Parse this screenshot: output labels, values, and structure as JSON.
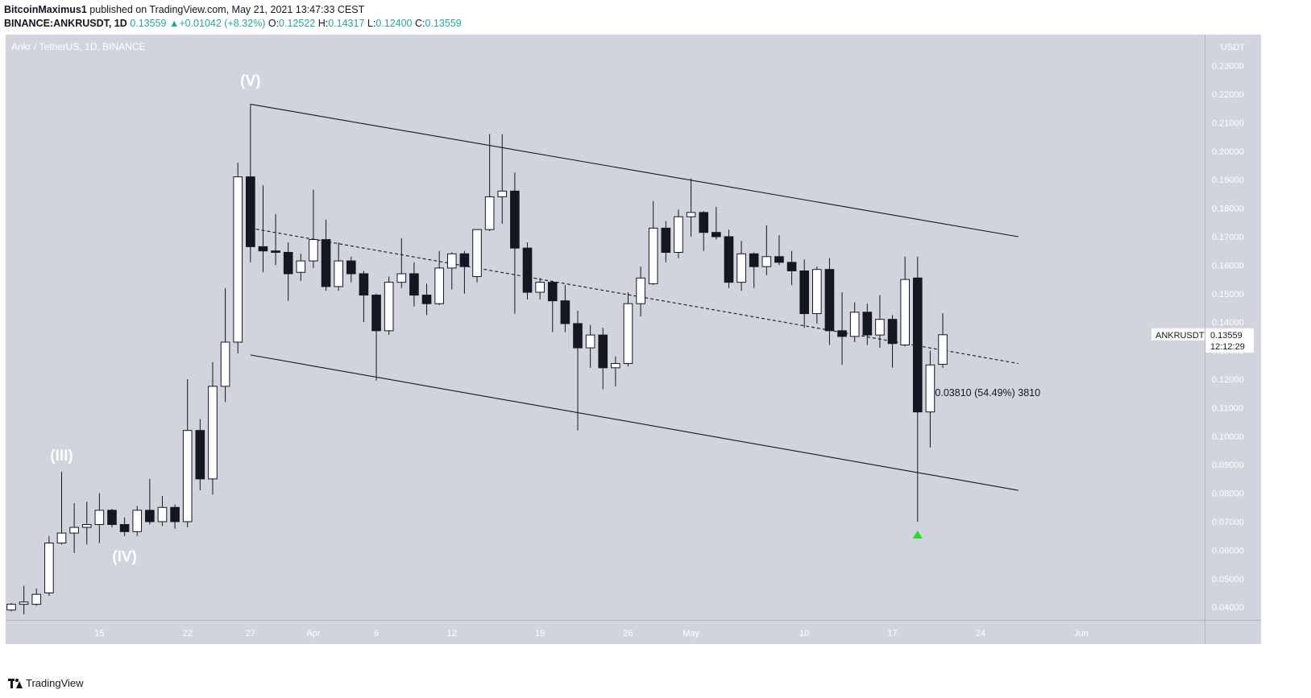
{
  "header": {
    "author": "BitcoinMaximus1",
    "published": " published on TradingView.com, May 21, 2021 13:47:33 CEST",
    "symbol": "BINANCE:ANKRUSDT, 1D",
    "last": "0.13559",
    "change_arrow": "▲",
    "change": "+0.01042 (+8.32%)",
    "o_label": "O:",
    "o": "0.12522",
    "h_label": "H:",
    "h": "0.14317",
    "l_label": "L:",
    "l": "0.12400",
    "c_label": "C:",
    "c": "0.13559"
  },
  "footer": {
    "brand": "TradingView",
    "logo_icon": "tradingview-logo-icon"
  },
  "chart_data": {
    "type": "candlestick",
    "title": "Ankr / TetherUS, 1D, BINANCE",
    "currency": "USDT",
    "ylim": [
      0.0375,
      0.233
    ],
    "y_ticks": [
      0.04,
      0.05,
      0.06,
      0.07,
      0.08,
      0.09,
      0.1,
      0.11,
      0.12,
      0.13,
      0.14,
      0.15,
      0.16,
      0.17,
      0.18,
      0.19,
      0.2,
      0.21,
      0.22,
      0.23
    ],
    "y_tick_labels": [
      "0.04000",
      "0.05000",
      "0.06000",
      "0.07000",
      "0.08000",
      "0.09000",
      "0.10000",
      "0.11000",
      "0.12000",
      "0.13000",
      "0.14000",
      "0.15000",
      "0.16000",
      "0.17000",
      "0.18000",
      "0.19000",
      "0.20000",
      "0.21000",
      "0.22000",
      "0.23000"
    ],
    "x_start": "2021-03-08",
    "x_end": "2021-06-06",
    "x_ticks": [
      {
        "date": "2021-03-15",
        "label": "15"
      },
      {
        "date": "2021-03-22",
        "label": "22"
      },
      {
        "date": "2021-03-27",
        "label": "27"
      },
      {
        "date": "2021-04-01",
        "label": "Apr"
      },
      {
        "date": "2021-04-06",
        "label": "6"
      },
      {
        "date": "2021-04-12",
        "label": "12"
      },
      {
        "date": "2021-04-19",
        "label": "19"
      },
      {
        "date": "2021-04-26",
        "label": "26"
      },
      {
        "date": "2021-05-01",
        "label": "May"
      },
      {
        "date": "2021-05-10",
        "label": "10"
      },
      {
        "date": "2021-05-17",
        "label": "17"
      },
      {
        "date": "2021-05-24",
        "label": "24"
      },
      {
        "date": "2021-06-01",
        "label": "Jun"
      }
    ],
    "candles": [
      {
        "date": "2021-03-08",
        "o": 0.039,
        "h": 0.0415,
        "l": 0.0385,
        "c": 0.041
      },
      {
        "date": "2021-03-09",
        "o": 0.041,
        "h": 0.0475,
        "l": 0.0375,
        "c": 0.0418
      },
      {
        "date": "2021-03-10",
        "o": 0.041,
        "h": 0.0465,
        "l": 0.0405,
        "c": 0.0445
      },
      {
        "date": "2021-03-11",
        "o": 0.045,
        "h": 0.065,
        "l": 0.044,
        "c": 0.0625
      },
      {
        "date": "2021-03-12",
        "o": 0.0625,
        "h": 0.0875,
        "l": 0.062,
        "c": 0.066
      },
      {
        "date": "2021-03-13",
        "o": 0.066,
        "h": 0.0765,
        "l": 0.059,
        "c": 0.068
      },
      {
        "date": "2021-03-14",
        "o": 0.068,
        "h": 0.077,
        "l": 0.062,
        "c": 0.069
      },
      {
        "date": "2021-03-15",
        "o": 0.069,
        "h": 0.08,
        "l": 0.0625,
        "c": 0.074
      },
      {
        "date": "2021-03-16",
        "o": 0.074,
        "h": 0.0745,
        "l": 0.068,
        "c": 0.069
      },
      {
        "date": "2021-03-17",
        "o": 0.069,
        "h": 0.0715,
        "l": 0.065,
        "c": 0.0665
      },
      {
        "date": "2021-03-18",
        "o": 0.0665,
        "h": 0.0755,
        "l": 0.065,
        "c": 0.074
      },
      {
        "date": "2021-03-19",
        "o": 0.074,
        "h": 0.085,
        "l": 0.069,
        "c": 0.07
      },
      {
        "date": "2021-03-20",
        "o": 0.07,
        "h": 0.079,
        "l": 0.0685,
        "c": 0.075
      },
      {
        "date": "2021-03-21",
        "o": 0.075,
        "h": 0.076,
        "l": 0.0675,
        "c": 0.07
      },
      {
        "date": "2021-03-22",
        "o": 0.07,
        "h": 0.12,
        "l": 0.068,
        "c": 0.102
      },
      {
        "date": "2021-03-23",
        "o": 0.102,
        "h": 0.106,
        "l": 0.081,
        "c": 0.085
      },
      {
        "date": "2021-03-24",
        "o": 0.085,
        "h": 0.126,
        "l": 0.0795,
        "c": 0.1175
      },
      {
        "date": "2021-03-25",
        "o": 0.1175,
        "h": 0.152,
        "l": 0.112,
        "c": 0.133
      },
      {
        "date": "2021-03-26",
        "o": 0.133,
        "h": 0.196,
        "l": 0.129,
        "c": 0.191
      },
      {
        "date": "2021-03-27",
        "o": 0.191,
        "h": 0.2165,
        "l": 0.161,
        "c": 0.1665
      },
      {
        "date": "2021-03-28",
        "o": 0.1665,
        "h": 0.188,
        "l": 0.1575,
        "c": 0.165
      },
      {
        "date": "2021-03-29",
        "o": 0.165,
        "h": 0.178,
        "l": 0.16,
        "c": 0.1645
      },
      {
        "date": "2021-03-30",
        "o": 0.1645,
        "h": 0.168,
        "l": 0.1475,
        "c": 0.157
      },
      {
        "date": "2021-03-31",
        "o": 0.1575,
        "h": 0.164,
        "l": 0.1545,
        "c": 0.1615
      },
      {
        "date": "2021-04-01",
        "o": 0.1615,
        "h": 0.1865,
        "l": 0.159,
        "c": 0.169
      },
      {
        "date": "2021-04-02",
        "o": 0.169,
        "h": 0.176,
        "l": 0.151,
        "c": 0.1525
      },
      {
        "date": "2021-04-03",
        "o": 0.1525,
        "h": 0.168,
        "l": 0.151,
        "c": 0.1615
      },
      {
        "date": "2021-04-04",
        "o": 0.1615,
        "h": 0.163,
        "l": 0.154,
        "c": 0.157
      },
      {
        "date": "2021-04-05",
        "o": 0.157,
        "h": 0.158,
        "l": 0.14,
        "c": 0.1495
      },
      {
        "date": "2021-04-06",
        "o": 0.1495,
        "h": 0.15,
        "l": 0.1195,
        "c": 0.137
      },
      {
        "date": "2021-04-07",
        "o": 0.137,
        "h": 0.156,
        "l": 0.1355,
        "c": 0.154
      },
      {
        "date": "2021-04-08",
        "o": 0.154,
        "h": 0.1695,
        "l": 0.152,
        "c": 0.157
      },
      {
        "date": "2021-04-09",
        "o": 0.157,
        "h": 0.161,
        "l": 0.1455,
        "c": 0.1495
      },
      {
        "date": "2021-04-10",
        "o": 0.1495,
        "h": 0.1535,
        "l": 0.1425,
        "c": 0.1465
      },
      {
        "date": "2021-04-11",
        "o": 0.1465,
        "h": 0.165,
        "l": 0.146,
        "c": 0.159
      },
      {
        "date": "2021-04-12",
        "o": 0.159,
        "h": 0.1645,
        "l": 0.1515,
        "c": 0.164
      },
      {
        "date": "2021-04-13",
        "o": 0.164,
        "h": 0.165,
        "l": 0.15,
        "c": 0.1595
      },
      {
        "date": "2021-04-14",
        "o": 0.156,
        "h": 0.1725,
        "l": 0.154,
        "c": 0.1725
      },
      {
        "date": "2021-04-15",
        "o": 0.1725,
        "h": 0.206,
        "l": 0.172,
        "c": 0.184
      },
      {
        "date": "2021-04-16",
        "o": 0.184,
        "h": 0.206,
        "l": 0.1745,
        "c": 0.186
      },
      {
        "date": "2021-04-17",
        "o": 0.186,
        "h": 0.1925,
        "l": 0.143,
        "c": 0.166
      },
      {
        "date": "2021-04-18",
        "o": 0.166,
        "h": 0.168,
        "l": 0.148,
        "c": 0.1505
      },
      {
        "date": "2021-04-19",
        "o": 0.1505,
        "h": 0.1555,
        "l": 0.148,
        "c": 0.154
      },
      {
        "date": "2021-04-20",
        "o": 0.154,
        "h": 0.1545,
        "l": 0.1365,
        "c": 0.1475
      },
      {
        "date": "2021-04-21",
        "o": 0.1475,
        "h": 0.153,
        "l": 0.1365,
        "c": 0.1395
      },
      {
        "date": "2021-04-22",
        "o": 0.1395,
        "h": 0.144,
        "l": 0.102,
        "c": 0.131
      },
      {
        "date": "2021-04-23",
        "o": 0.131,
        "h": 0.139,
        "l": 0.124,
        "c": 0.1355
      },
      {
        "date": "2021-04-24",
        "o": 0.1355,
        "h": 0.138,
        "l": 0.1165,
        "c": 0.124
      },
      {
        "date": "2021-04-25",
        "o": 0.124,
        "h": 0.128,
        "l": 0.1175,
        "c": 0.1255
      },
      {
        "date": "2021-04-26",
        "o": 0.1255,
        "h": 0.1505,
        "l": 0.1245,
        "c": 0.1465
      },
      {
        "date": "2021-04-27",
        "o": 0.1465,
        "h": 0.1595,
        "l": 0.142,
        "c": 0.1555
      },
      {
        "date": "2021-04-28",
        "o": 0.1535,
        "h": 0.1825,
        "l": 0.153,
        "c": 0.173
      },
      {
        "date": "2021-04-29",
        "o": 0.173,
        "h": 0.1755,
        "l": 0.161,
        "c": 0.1645
      },
      {
        "date": "2021-04-30",
        "o": 0.1645,
        "h": 0.1795,
        "l": 0.1625,
        "c": 0.177
      },
      {
        "date": "2021-05-01",
        "o": 0.177,
        "h": 0.1905,
        "l": 0.17,
        "c": 0.1785
      },
      {
        "date": "2021-05-02",
        "o": 0.1785,
        "h": 0.179,
        "l": 0.165,
        "c": 0.1715
      },
      {
        "date": "2021-05-03",
        "o": 0.1715,
        "h": 0.1805,
        "l": 0.169,
        "c": 0.17
      },
      {
        "date": "2021-05-04",
        "o": 0.17,
        "h": 0.1725,
        "l": 0.152,
        "c": 0.154
      },
      {
        "date": "2021-05-05",
        "o": 0.154,
        "h": 0.1685,
        "l": 0.151,
        "c": 0.164
      },
      {
        "date": "2021-05-06",
        "o": 0.164,
        "h": 0.1645,
        "l": 0.152,
        "c": 0.1595
      },
      {
        "date": "2021-05-07",
        "o": 0.1595,
        "h": 0.174,
        "l": 0.1565,
        "c": 0.163
      },
      {
        "date": "2021-05-08",
        "o": 0.163,
        "h": 0.1705,
        "l": 0.16,
        "c": 0.161
      },
      {
        "date": "2021-05-09",
        "o": 0.161,
        "h": 0.165,
        "l": 0.153,
        "c": 0.158
      },
      {
        "date": "2021-05-10",
        "o": 0.158,
        "h": 0.162,
        "l": 0.138,
        "c": 0.143
      },
      {
        "date": "2021-05-11",
        "o": 0.143,
        "h": 0.1595,
        "l": 0.1395,
        "c": 0.1585
      },
      {
        "date": "2021-05-12",
        "o": 0.1585,
        "h": 0.1625,
        "l": 0.132,
        "c": 0.137
      },
      {
        "date": "2021-05-13",
        "o": 0.137,
        "h": 0.1505,
        "l": 0.125,
        "c": 0.135
      },
      {
        "date": "2021-05-14",
        "o": 0.135,
        "h": 0.147,
        "l": 0.133,
        "c": 0.1435
      },
      {
        "date": "2021-05-15",
        "o": 0.1435,
        "h": 0.1465,
        "l": 0.132,
        "c": 0.1355
      },
      {
        "date": "2021-05-16",
        "o": 0.1355,
        "h": 0.1495,
        "l": 0.131,
        "c": 0.141
      },
      {
        "date": "2021-05-17",
        "o": 0.141,
        "h": 0.1425,
        "l": 0.124,
        "c": 0.1325
      },
      {
        "date": "2021-05-18",
        "o": 0.132,
        "h": 0.163,
        "l": 0.1315,
        "c": 0.155
      },
      {
        "date": "2021-05-19",
        "o": 0.1555,
        "h": 0.163,
        "l": 0.07,
        "c": 0.1085
      },
      {
        "date": "2021-05-20",
        "o": 0.1085,
        "h": 0.13,
        "l": 0.096,
        "c": 0.125
      },
      {
        "date": "2021-05-21",
        "o": 0.12522,
        "h": 0.14317,
        "l": 0.124,
        "c": 0.13559
      }
    ],
    "channel_lines": [
      {
        "name": "upper",
        "style": "solid",
        "from": {
          "date": "2021-03-27",
          "price": 0.2165
        },
        "to": {
          "date": "2021-05-27",
          "price": 0.17
        }
      },
      {
        "name": "median",
        "style": "dashed",
        "from": {
          "date": "2021-03-27",
          "price": 0.173
        },
        "to": {
          "date": "2021-05-27",
          "price": 0.1255
        }
      },
      {
        "name": "lower",
        "style": "solid",
        "from": {
          "date": "2021-03-27",
          "price": 0.1285
        },
        "to": {
          "date": "2021-05-27",
          "price": 0.081
        }
      }
    ],
    "wave_labels": [
      {
        "text": "(III)",
        "date": "2021-03-12",
        "price": 0.0915
      },
      {
        "text": "(IV)",
        "date": "2021-03-17",
        "price": 0.056
      },
      {
        "text": "(V)",
        "date": "2021-03-27",
        "price": 0.223
      }
    ],
    "measure": {
      "text": "0.03810 (54.49%) 3810",
      "date": "2021-05-20",
      "price": 0.114
    },
    "arrow_marker": {
      "date": "2021-05-19",
      "price": 0.0655,
      "color": "#22e022"
    },
    "last_price_tag": {
      "symbol": "ANKRUSDT",
      "value": "0.13559",
      "countdown": "12:12:29"
    },
    "colors": {
      "bg": "#d1d4dc",
      "up": "#ffffff",
      "down": "#131722",
      "line": "#131722",
      "text": "#ffffff"
    }
  }
}
